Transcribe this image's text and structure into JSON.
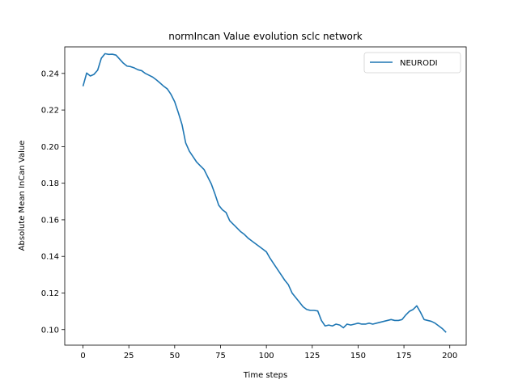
{
  "chart_data": {
    "type": "line",
    "title": "normIncan Value evolution sclc network",
    "xlabel": "Time steps",
    "ylabel": "Absolute Mean InCan Value",
    "xlim": [
      -9.95,
      208.95
    ],
    "ylim": [
      0.0915,
      0.2545
    ],
    "xticks": [
      0,
      25,
      50,
      75,
      100,
      125,
      150,
      175,
      200
    ],
    "yticks": [
      0.1,
      0.12,
      0.14,
      0.16,
      0.18,
      0.2,
      0.22,
      0.24
    ],
    "xtick_labels": [
      "0",
      "25",
      "50",
      "75",
      "100",
      "125",
      "150",
      "175",
      "200"
    ],
    "ytick_labels": [
      "0.10",
      "0.12",
      "0.14",
      "0.16",
      "0.18",
      "0.20",
      "0.22",
      "0.24"
    ],
    "grid": false,
    "legend_position": "top-right",
    "series": [
      {
        "name": "NEURODI",
        "color": "#1f77b4",
        "x": [
          0,
          2,
          4,
          6,
          8,
          10,
          12,
          14,
          16,
          18,
          20,
          22,
          24,
          26,
          28,
          30,
          32,
          34,
          36,
          38,
          40,
          42,
          44,
          46,
          48,
          50,
          52,
          54,
          56,
          58,
          60,
          62,
          64,
          66,
          68,
          70,
          72,
          74,
          76,
          78,
          80,
          82,
          84,
          86,
          88,
          90,
          92,
          94,
          96,
          98,
          100,
          102,
          104,
          106,
          108,
          110,
          112,
          114,
          116,
          118,
          120,
          122,
          124,
          126,
          128,
          130,
          132,
          134,
          136,
          138,
          140,
          142,
          144,
          146,
          148,
          150,
          152,
          154,
          156,
          158,
          160,
          162,
          164,
          166,
          168,
          170,
          172,
          174,
          176,
          178,
          180,
          182,
          184,
          186,
          188,
          190,
          192,
          194,
          196,
          198
        ],
        "y": [
          0.233,
          0.2402,
          0.2386,
          0.2395,
          0.2418,
          0.2483,
          0.2508,
          0.2504,
          0.2505,
          0.25,
          0.2478,
          0.2456,
          0.244,
          0.2437,
          0.243,
          0.242,
          0.2415,
          0.24,
          0.239,
          0.238,
          0.2365,
          0.2348,
          0.233,
          0.2315,
          0.2285,
          0.2245,
          0.2185,
          0.212,
          0.202,
          0.1975,
          0.1945,
          0.1915,
          0.1895,
          0.1875,
          0.1835,
          0.1795,
          0.174,
          0.168,
          0.1655,
          0.164,
          0.1595,
          0.1575,
          0.1555,
          0.1535,
          0.152,
          0.15,
          0.1485,
          0.147,
          0.1455,
          0.144,
          0.1425,
          0.139,
          0.136,
          0.133,
          0.13,
          0.127,
          0.1245,
          0.12,
          0.1175,
          0.115,
          0.1125,
          0.111,
          0.1105,
          0.1105,
          0.1102,
          0.105,
          0.102,
          0.1025,
          0.102,
          0.103,
          0.1025,
          0.101,
          0.103,
          0.1025,
          0.103,
          0.1035,
          0.103,
          0.103,
          0.1035,
          0.103,
          0.1035,
          0.104,
          0.1045,
          0.105,
          0.1055,
          0.105,
          0.105,
          0.1055,
          0.108,
          0.11,
          0.111,
          0.113,
          0.1095,
          0.1055,
          0.105,
          0.1045,
          0.1035,
          0.102,
          0.1005,
          0.0985
        ]
      }
    ]
  }
}
